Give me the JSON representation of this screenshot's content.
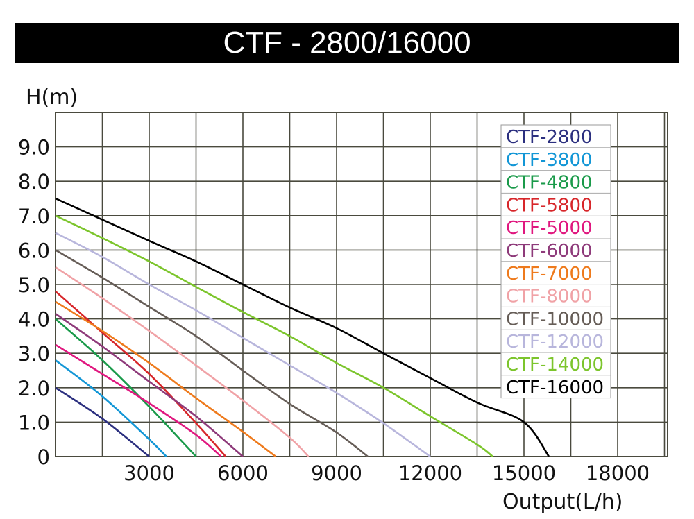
{
  "title": "CTF - 2800/16000",
  "chart_data": {
    "type": "line",
    "title": "CTF - 2800/16000",
    "xlabel": "Output(L/h)",
    "ylabel": "H(m)",
    "xlim": [
      0,
      19600
    ],
    "ylim": [
      0,
      10
    ],
    "x_ticks": [
      "3000",
      "6000",
      "9000",
      "12000",
      "15000",
      "18000"
    ],
    "x_tick_values": [
      3000,
      6000,
      9000,
      12000,
      15000,
      18000
    ],
    "y_ticks": [
      "0",
      "1.0",
      "2.0",
      "3.0",
      "4.0",
      "5.0",
      "6.0",
      "7.0",
      "8.0",
      "9.0"
    ],
    "y_tick_values": [
      0,
      1,
      2,
      3,
      4,
      5,
      6,
      7,
      8,
      9
    ],
    "grid": true,
    "grid_x_step": 1500,
    "grid_y_step": 1,
    "legend_position": "top-right",
    "series": [
      {
        "name": "CTF-2800",
        "color": "#2b2f7f",
        "x": [
          0,
          1500,
          3000
        ],
        "y": [
          2.0,
          1.1,
          0
        ]
      },
      {
        "name": "CTF-3800",
        "color": "#1296d6",
        "x": [
          0,
          1500,
          3000,
          3550
        ],
        "y": [
          2.8,
          1.75,
          0.5,
          0
        ]
      },
      {
        "name": "CTF-4800",
        "color": "#1a9a4a",
        "x": [
          0,
          1500,
          3000,
          4500
        ],
        "y": [
          4.0,
          2.8,
          1.45,
          0
        ]
      },
      {
        "name": "CTF-5800",
        "color": "#d7262a",
        "x": [
          0,
          1500,
          3000,
          4500,
          5450
        ],
        "y": [
          4.8,
          3.6,
          2.4,
          0.97,
          0
        ]
      },
      {
        "name": "CTF-5000",
        "color": "#e0177f",
        "x": [
          0,
          1500,
          3000,
          4500,
          5300
        ],
        "y": [
          3.25,
          2.4,
          1.55,
          0.63,
          0
        ]
      },
      {
        "name": "CTF-6000",
        "color": "#8e3a7a",
        "x": [
          0,
          1500,
          3000,
          4500,
          6000
        ],
        "y": [
          4.15,
          3.2,
          2.18,
          1.17,
          0
        ]
      },
      {
        "name": "CTF-7000",
        "color": "#ee7a1c",
        "x": [
          0,
          1500,
          3000,
          4500,
          6000,
          7050
        ],
        "y": [
          4.5,
          3.65,
          2.72,
          1.7,
          0.72,
          0
        ]
      },
      {
        "name": "CTF-8000",
        "color": "#f0a2a6",
        "x": [
          0,
          1500,
          3000,
          4500,
          6000,
          7500,
          8100
        ],
        "y": [
          5.5,
          4.6,
          3.65,
          2.65,
          1.63,
          0.55,
          0
        ]
      },
      {
        "name": "CTF-10000",
        "color": "#665d57",
        "x": [
          0,
          1500,
          3000,
          4500,
          6000,
          7500,
          9000,
          10000
        ],
        "y": [
          6.0,
          5.2,
          4.35,
          3.5,
          2.5,
          1.53,
          0.7,
          0
        ]
      },
      {
        "name": "CTF-12000",
        "color": "#b8b6dc",
        "x": [
          0,
          1500,
          3000,
          4500,
          6000,
          7500,
          9000,
          10500,
          12000
        ],
        "y": [
          6.5,
          5.8,
          5.0,
          4.25,
          3.45,
          2.65,
          1.85,
          0.97,
          0
        ]
      },
      {
        "name": "CTF-14000",
        "color": "#7cc52c",
        "x": [
          0,
          1500,
          3000,
          4500,
          6000,
          7500,
          9000,
          10500,
          12000,
          13500,
          14000
        ],
        "y": [
          7.0,
          6.35,
          5.67,
          4.93,
          4.2,
          3.5,
          2.72,
          2.0,
          1.17,
          0.35,
          0
        ]
      },
      {
        "name": "CTF-16000",
        "color": "#000000",
        "x": [
          0,
          3000,
          4500,
          6000,
          7500,
          9000,
          10500,
          12000,
          13500,
          15000,
          15800
        ],
        "y": [
          7.5,
          6.27,
          5.67,
          5.0,
          4.33,
          3.73,
          3.0,
          2.28,
          1.57,
          1.0,
          0
        ]
      }
    ]
  }
}
